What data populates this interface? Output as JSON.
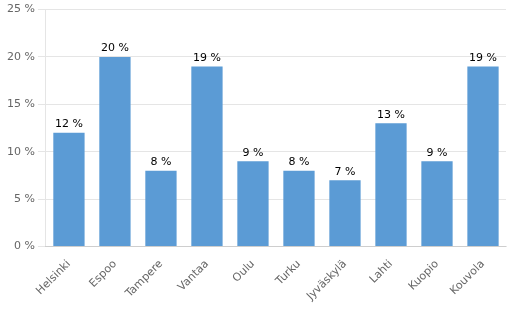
{
  "chart_data": {
    "type": "bar",
    "categories": [
      "Helsinki",
      "Espoo",
      "Tampere",
      "Vantaa",
      "Oulu",
      "Turku",
      "Jyväskylä",
      "Lahti",
      "Kuopio",
      "Kouvola"
    ],
    "values": [
      12,
      20,
      8,
      19,
      9,
      8,
      7,
      13,
      9,
      19
    ],
    "value_labels": [
      "12 %",
      "20 %",
      "8 %",
      "19 %",
      "9 %",
      "8 %",
      "7 %",
      "13 %",
      "9 %",
      "19 %"
    ],
    "data_labels": true,
    "color": "#5b9bd5",
    "ylim": [
      0,
      25
    ],
    "yticks": [
      {
        "value": 0,
        "label": "0 %"
      },
      {
        "value": 5,
        "label": "5 %"
      },
      {
        "value": 10,
        "label": "10 %"
      },
      {
        "value": 15,
        "label": "15 %"
      },
      {
        "value": 20,
        "label": "20 %"
      },
      {
        "value": 25,
        "label": "25 %"
      }
    ],
    "grid": true
  }
}
